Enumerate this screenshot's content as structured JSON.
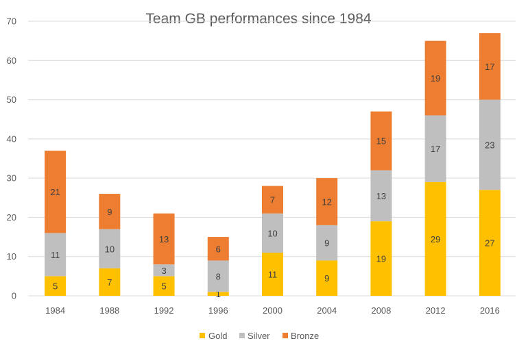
{
  "chart_data": {
    "type": "bar",
    "stacked": true,
    "title": "Team GB performances since 1984",
    "xlabel": "",
    "ylabel": "",
    "categories": [
      "1984",
      "1988",
      "1992",
      "1996",
      "2000",
      "2004",
      "2008",
      "2012",
      "2016"
    ],
    "series": [
      {
        "name": "Gold",
        "color": "#FFC000",
        "values": [
          5,
          7,
          5,
          1,
          11,
          9,
          19,
          29,
          27
        ]
      },
      {
        "name": "Silver",
        "color": "#BFBFBF",
        "values": [
          11,
          10,
          3,
          8,
          10,
          9,
          13,
          17,
          23
        ]
      },
      {
        "name": "Bronze",
        "color": "#ED7D31",
        "values": [
          21,
          9,
          13,
          6,
          7,
          12,
          15,
          19,
          17
        ]
      }
    ],
    "ylim": [
      0,
      70
    ],
    "yticks": [
      0,
      10,
      20,
      30,
      40,
      50,
      60,
      70
    ],
    "grid": true,
    "data_labels": true,
    "legend_position": "bottom"
  }
}
